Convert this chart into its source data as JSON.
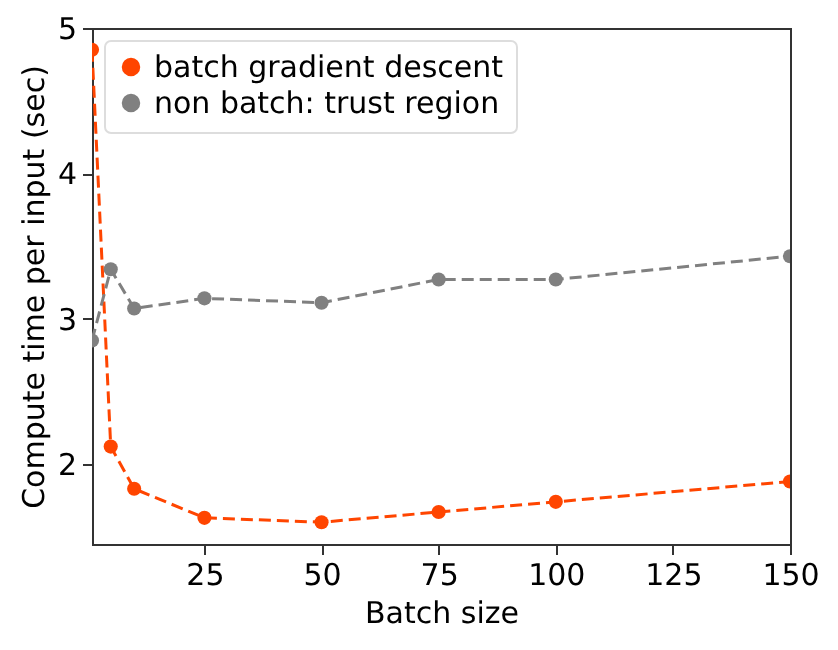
{
  "chart_data": {
    "type": "line",
    "xlabel": "Batch size",
    "ylabel": "Compute time per input (sec)",
    "x": [
      1,
      5,
      10,
      25,
      50,
      75,
      100,
      150
    ],
    "series": [
      {
        "name": "batch gradient descent",
        "color": "#ff4500",
        "values": [
          4.85,
          2.12,
          1.83,
          1.63,
          1.6,
          1.67,
          1.74,
          1.88
        ]
      },
      {
        "name": "non batch: trust region",
        "color": "#808080",
        "values": [
          2.85,
          3.34,
          3.07,
          3.14,
          3.11,
          3.27,
          3.27,
          3.43
        ]
      }
    ],
    "xlim": [
      1,
      150
    ],
    "xticks": [
      25,
      50,
      75,
      100,
      125,
      150
    ],
    "ylim": [
      1.45,
      5
    ],
    "yticks": [
      2,
      3,
      4,
      5
    ],
    "legend": "top left",
    "marker": "circle",
    "line_style": "dashed"
  }
}
